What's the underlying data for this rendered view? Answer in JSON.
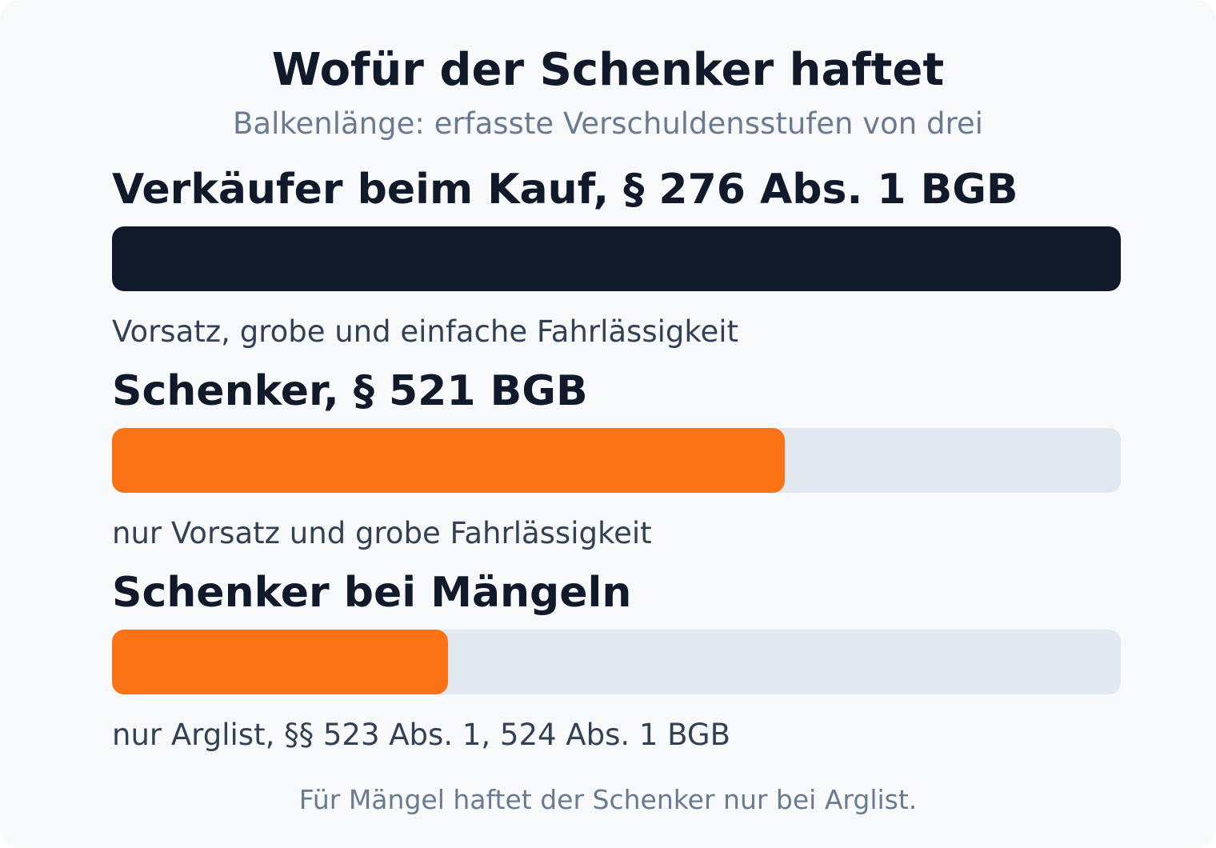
{
  "chart_data": {
    "type": "bar",
    "orientation": "horizontal",
    "title": "Wofür der Schenker haftet",
    "subtitle": "Balkenlänge: erfasste Verschuldensstufen von drei",
    "xlim": [
      0,
      3
    ],
    "grid": false,
    "legend": "none",
    "categories": [
      "Verkäufer beim Kauf, § 276 Abs. 1 BGB",
      "Schenker, § 521 BGB",
      "Schenker bei Mängeln"
    ],
    "values": [
      3,
      2,
      1
    ],
    "annotations": [
      "Vorsatz, grobe und einfache Fahrlässigkeit",
      "nur Vorsatz und grobe Fahrlässigkeit",
      "nur Arglist, §§ 523 Abs. 1, 524 Abs. 1 BGB"
    ],
    "colors": [
      "#111a2b",
      "#f97316",
      "#f97316"
    ],
    "track_color": "#e1e8f0",
    "footnote": "Für Mängel haftet der Schenker nur bei Arglist."
  }
}
